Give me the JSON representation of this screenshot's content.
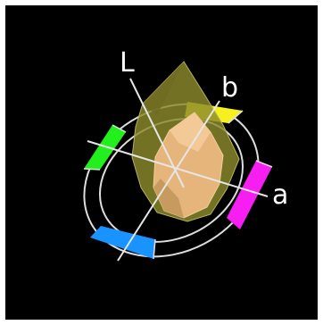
{
  "axes": {
    "l_label": "L",
    "a_label": "a",
    "b_label": "b"
  },
  "colors": {
    "background": "#000000",
    "frame": "#ffffff",
    "ring_line": "#ffffff",
    "green": "#22f01c",
    "blue": "#1993ff",
    "yellow": "#f6f01f",
    "magenta": "#f71ef2",
    "gamut_outer": "#8c8a2c",
    "gamut_inner": "#e6b57b"
  },
  "ring_segments": [
    {
      "name": "green-hue-segment",
      "color_key": "green"
    },
    {
      "name": "yellow-hue-segment",
      "color_key": "yellow"
    },
    {
      "name": "magenta-hue-segment",
      "color_key": "magenta"
    },
    {
      "name": "blue-hue-segment",
      "color_key": "blue"
    }
  ]
}
